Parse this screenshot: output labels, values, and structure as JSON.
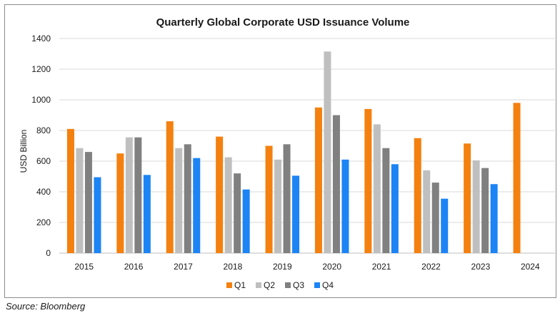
{
  "chart_data": {
    "type": "bar",
    "title": "Quarterly Global Corporate USD Issuance Volume",
    "ylabel": "USD Billion",
    "xlabel": "",
    "ylim": [
      0,
      1400
    ],
    "yticks": [
      0,
      200,
      400,
      600,
      800,
      1000,
      1200,
      1400
    ],
    "grid": true,
    "legend": "bottom",
    "categories": [
      "2015",
      "2016",
      "2017",
      "2018",
      "2019",
      "2020",
      "2021",
      "2022",
      "2023",
      "2024"
    ],
    "series": [
      {
        "name": "Q1",
        "color": "#F4800F",
        "values": [
          810,
          650,
          860,
          760,
          700,
          950,
          940,
          750,
          715,
          980
        ]
      },
      {
        "name": "Q2",
        "color": "#BFBFBF",
        "values": [
          685,
          755,
          685,
          625,
          610,
          1315,
          840,
          540,
          605,
          null
        ]
      },
      {
        "name": "Q3",
        "color": "#808080",
        "values": [
          660,
          755,
          710,
          520,
          710,
          900,
          685,
          460,
          555,
          null
        ]
      },
      {
        "name": "Q4",
        "color": "#1C84F5",
        "values": [
          495,
          510,
          620,
          415,
          505,
          610,
          580,
          355,
          450,
          null
        ]
      }
    ]
  },
  "source": "Source: Bloomberg"
}
